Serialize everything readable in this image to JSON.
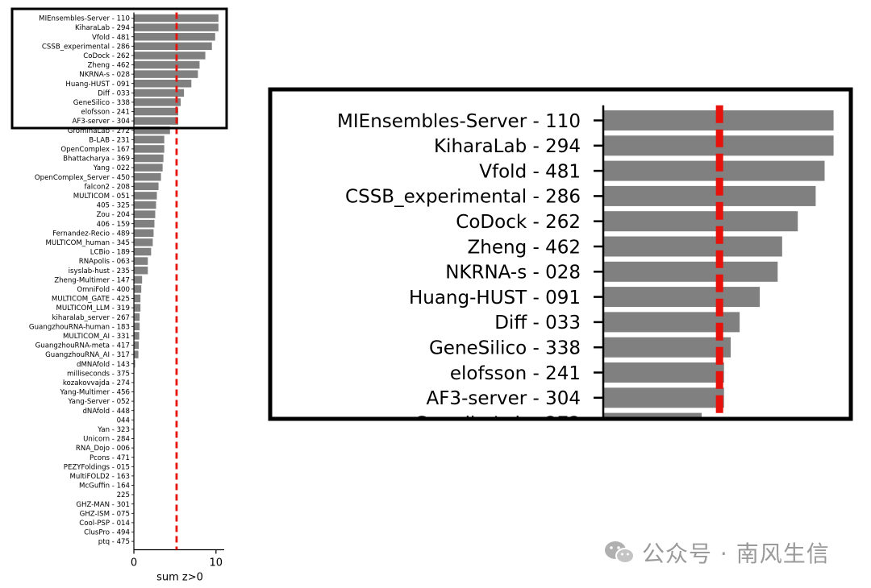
{
  "chart_data": [
    {
      "type": "bar",
      "orientation": "horizontal",
      "title": "",
      "xlabel": "sum z>0",
      "ylabel": "",
      "xlim": [
        0,
        11
      ],
      "xticks": [
        0,
        10
      ],
      "bar_color": "#808080",
      "threshold": {
        "value": 5.2,
        "color": "#e8120c",
        "style": "dashed"
      },
      "highlight_box": {
        "from": "MIEnsembles-Server - 110",
        "to": "AF3-server - 304"
      },
      "categories": [
        "MIEnsembles-Server - 110",
        "KiharaLab - 294",
        "Vfold - 481",
        "CSSB_experimental - 286",
        "CoDock - 262",
        "Zheng - 462",
        "NKRNA-s - 028",
        "Huang-HUST - 091",
        "Diff - 033",
        "GeneSilico - 338",
        "elofsson - 241",
        "AF3-server - 304",
        "GromihaLab - 272",
        "B-LAB - 231",
        "OpenComplex - 167",
        "Bhattacharya - 369",
        "Yang - 022",
        "OpenComplex_Server - 450",
        "falcon2 - 208",
        "MULTICOM - 051",
        "405 - 325",
        "Zou - 204",
        "406 - 159",
        "Fernandez-Recio - 489",
        "MULTICOM_human - 345",
        "LCBio - 189",
        "RNApolis - 063",
        "isyslab-hust - 235",
        "Zheng-Multimer - 147",
        "OmniFold - 400",
        "MULTICOM_GATE - 425",
        "MULTICOM_LLM - 319",
        "kiharalab_server - 267",
        "GuangzhouRNA-human - 183",
        "MULTICOM_AI - 331",
        "GuangzhouRNA-meta - 417",
        "GuangzhouRNA_AI - 317",
        "dMNAfold - 143",
        "milliseconds - 375",
        "kozakovvajda - 274",
        "Yang-Multimer - 456",
        "Yang-Server - 052",
        "dNAfold - 448",
        "044",
        "Yan - 323",
        "Unicorn - 284",
        "RNA_Dojo - 006",
        "Pcons - 471",
        "PEZYFoldings - 015",
        "MultiFOLD2 - 163",
        "McGuffin - 164",
        "225",
        "GHZ-MAN - 301",
        "GHZ-ISM - 075",
        "Cool-PSP - 014",
        "ClusPro - 494",
        "ptq - 475"
      ],
      "values": [
        10.3,
        10.3,
        9.9,
        9.5,
        8.7,
        8.0,
        7.8,
        7.0,
        6.1,
        5.7,
        5.4,
        5.4,
        4.4,
        3.7,
        3.7,
        3.6,
        3.5,
        3.3,
        3.0,
        2.8,
        2.7,
        2.6,
        2.5,
        2.4,
        2.3,
        2.1,
        1.7,
        1.7,
        1.0,
        0.9,
        0.8,
        0.8,
        0.7,
        0.7,
        0.65,
        0.6,
        0.55,
        0.15,
        0,
        0,
        0,
        0,
        0,
        0,
        0,
        0,
        0,
        0,
        0,
        0,
        0,
        0,
        0,
        0,
        0,
        0,
        0
      ]
    },
    {
      "type": "bar",
      "orientation": "horizontal",
      "title": "",
      "xlabel": "",
      "ylabel": "",
      "xlim": [
        0,
        11
      ],
      "bar_color": "#808080",
      "threshold": {
        "value": 5.2,
        "color": "#e8120c",
        "style": "dashed"
      },
      "categories": [
        "MIEnsembles-Server - 110",
        "KiharaLab - 294",
        "Vfold - 481",
        "CSSB_experimental - 286",
        "CoDock - 262",
        "Zheng - 462",
        "NKRNA-s - 028",
        "Huang-HUST - 091",
        "Diff - 033",
        "GeneSilico - 338",
        "elofsson - 241",
        "AF3-server - 304"
      ],
      "values": [
        10.3,
        10.3,
        9.9,
        9.5,
        8.7,
        8.0,
        7.8,
        7.0,
        6.1,
        5.7,
        5.4,
        5.4
      ]
    }
  ],
  "watermark": {
    "icon": "wechat-icon",
    "text": "公众号 · 南风生信"
  }
}
